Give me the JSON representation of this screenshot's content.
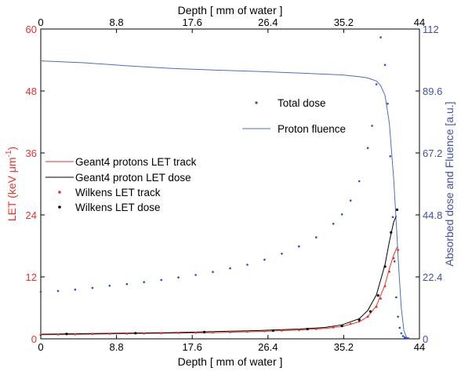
{
  "colors": {
    "left_axis": "#e8332b",
    "right_axis": "#3f51a8",
    "dose": "#2b4bd1",
    "fluence": "#4a6fb8",
    "geant4_track": "#e8332b",
    "geant4_dose": "#000000",
    "wilkens_track": "#e8332b",
    "wilkens_dose": "#000000"
  },
  "chart_data": {
    "type": "line",
    "title": "",
    "xlabel_bottom": "Depth [ mm of water ]",
    "xlabel_top": "Depth [ mm of water ]",
    "ylabel_left": "LET (keV μm⁻¹)",
    "ylabel_left_main": "LET (keV μm",
    "ylabel_left_sup": "-1",
    "ylabel_left_close": ")",
    "ylabel_right": "Absorbed dose and Fluence [a.u.]",
    "xlim": [
      0,
      44
    ],
    "ylim_left": [
      0,
      60
    ],
    "ylim_right": [
      0,
      112
    ],
    "x_ticks": [
      "0",
      "8.8",
      "17.6",
      "26.4",
      "35.2",
      "44"
    ],
    "x_tick_values": [
      0,
      8.8,
      17.6,
      26.4,
      35.2,
      44
    ],
    "y_left_ticks": [
      "0",
      "12",
      "24",
      "36",
      "48",
      "60"
    ],
    "y_left_tick_values": [
      0,
      12,
      24,
      36,
      48,
      60
    ],
    "y_right_ticks": [
      "0",
      "22.4",
      "44.8",
      "67.2",
      "89.6",
      "112"
    ],
    "y_right_tick_values": [
      0,
      22.4,
      44.8,
      67.2,
      89.6,
      112
    ],
    "legend_upper": [
      "Total dose",
      "Proton fluence"
    ],
    "legend_lower": [
      "Geant4 protons LET track",
      "Geant4 proton LET dose",
      "Wilkens LET track",
      "Wilkens LET dose"
    ],
    "series": [
      {
        "name": "Total dose",
        "axis": "right",
        "style": "dots",
        "x": [
          0,
          2,
          4,
          6,
          8,
          10,
          12,
          14,
          16,
          18,
          20,
          22,
          24,
          26,
          28,
          30,
          32,
          34,
          35,
          36,
          37,
          38,
          38.5,
          39,
          39.5,
          40,
          40.3,
          40.6,
          40.9,
          41.1,
          41.3,
          41.5,
          41.7,
          41.9,
          42.1,
          42.3,
          42.5,
          42.7
        ],
        "y": [
          17,
          17.3,
          17.8,
          18.4,
          19.2,
          19.8,
          20.5,
          21.3,
          22.2,
          23.1,
          24.2,
          25.5,
          26.8,
          28.6,
          30.8,
          33.4,
          36.7,
          41.6,
          45,
          50,
          57,
          69,
          77,
          92,
          109,
          99,
          85,
          66,
          44,
          28,
          15,
          8,
          4,
          2,
          1,
          0.5,
          0.3,
          0.2
        ]
      },
      {
        "name": "Proton fluence",
        "axis": "right",
        "style": "line",
        "x": [
          0,
          5,
          10,
          15,
          20,
          25,
          30,
          35,
          37,
          38,
          39,
          39.5,
          40,
          40.5,
          41,
          41.3,
          41.6,
          41.9,
          42.2,
          42.5
        ],
        "y": [
          100.5,
          99.8,
          98.7,
          97.8,
          97.2,
          96.7,
          96.1,
          95.4,
          94.8,
          94.3,
          93.2,
          91.5,
          88,
          78,
          58,
          42,
          25,
          11,
          3,
          0.5
        ]
      },
      {
        "name": "Geant4 protons LET track",
        "axis": "left",
        "style": "line",
        "x": [
          0,
          5,
          10,
          15,
          20,
          25,
          30,
          33,
          35,
          37,
          38,
          39,
          40,
          40.5,
          41,
          41.4
        ],
        "y": [
          0.8,
          0.9,
          1.0,
          1.1,
          1.2,
          1.4,
          1.7,
          2.0,
          2.4,
          3.3,
          4.3,
          6.4,
          10.5,
          13.6,
          16.2,
          17.8
        ]
      },
      {
        "name": "Geant4 proton LET dose",
        "axis": "left",
        "style": "line",
        "x": [
          0,
          5,
          10,
          15,
          20,
          25,
          30,
          33,
          35,
          37,
          38,
          39,
          40,
          40.5,
          41,
          41.3
        ],
        "y": [
          0.9,
          1.0,
          1.1,
          1.2,
          1.4,
          1.6,
          1.9,
          2.2,
          2.7,
          3.9,
          5.5,
          8.5,
          14.4,
          18.8,
          22.6,
          23.8
        ]
      },
      {
        "name": "Wilkens LET track",
        "axis": "left",
        "style": "dots",
        "x": [
          0,
          2,
          4,
          6,
          8,
          10,
          12,
          14,
          16,
          18,
          20,
          22,
          24,
          26,
          28,
          30,
          32,
          34,
          36,
          37,
          38,
          39,
          39.5,
          40,
          40.5,
          41,
          41.5
        ],
        "y": [
          0.8,
          0.85,
          0.9,
          0.95,
          1.0,
          1.0,
          1.05,
          1.1,
          1.15,
          1.2,
          1.25,
          1.3,
          1.4,
          1.5,
          1.6,
          1.7,
          1.9,
          2.2,
          2.9,
          3.4,
          4.3,
          6.2,
          7.8,
          10.2,
          13,
          15.6,
          17.2
        ]
      },
      {
        "name": "Wilkens LET dose",
        "axis": "left",
        "style": "dots",
        "x": [
          3,
          11,
          19,
          27,
          31,
          35,
          37,
          38.3,
          39.2,
          40,
          40.7,
          41.4
        ],
        "y": [
          0.95,
          1.1,
          1.3,
          1.6,
          1.9,
          2.5,
          3.7,
          5.3,
          8.4,
          14,
          20.6,
          25
        ]
      }
    ]
  }
}
